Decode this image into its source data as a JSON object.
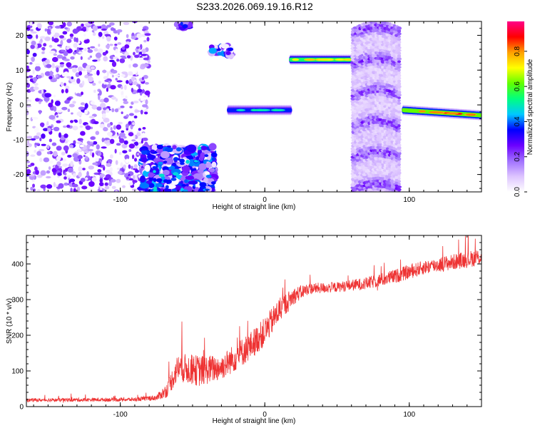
{
  "title": "S233.2026.069.19.16.R12",
  "chart_data": [
    {
      "type": "heatmap",
      "xlabel": "Height of straight line (km)",
      "ylabel": "Frequency (Hz)",
      "xlim": [
        -165,
        150
      ],
      "ylim": [
        -25,
        24
      ],
      "xticks": [
        -100,
        0,
        100
      ],
      "yticks": [
        -20,
        -10,
        0,
        10,
        20
      ],
      "colorbar": {
        "label": "Normalized spectral amplitude",
        "range": [
          0.0,
          0.97
        ],
        "ticks": [
          0.0,
          0.2,
          0.4,
          0.6,
          0.8
        ],
        "colors": [
          "#ffffff",
          "#ddc4ff",
          "#a070ff",
          "#6b00ff",
          "#0000ff",
          "#00c8ff",
          "#00ff80",
          "#60ff00",
          "#ffff00",
          "#ffa000",
          "#ff0000",
          "#ff0088"
        ]
      },
      "features": [
        {
          "kind": "noise",
          "x": [
            -165,
            -80
          ],
          "y": [
            -25,
            24
          ],
          "amplitude": 0.1
        },
        {
          "kind": "cluster",
          "x": [
            -85,
            -35
          ],
          "y": [
            -25,
            -12
          ],
          "amplitude": 0.45
        },
        {
          "kind": "cluster",
          "x": [
            -60,
            -52
          ],
          "y": [
            22,
            24
          ],
          "amplitude": 0.35
        },
        {
          "kind": "cluster",
          "x": [
            -37,
            -23
          ],
          "y": [
            14,
            17
          ],
          "amplitude": 0.45
        },
        {
          "kind": "line",
          "x": [
            -25,
            18
          ],
          "y": [
            -1.5,
            -1.5
          ],
          "amplitude": 0.5
        },
        {
          "kind": "line",
          "x": [
            18,
            62
          ],
          "y": [
            13,
            13
          ],
          "amplitude": 0.75
        },
        {
          "kind": "stripe",
          "x": [
            61,
            94
          ],
          "y": [
            -25,
            24
          ],
          "amplitude": 0.15
        },
        {
          "kind": "line",
          "x": [
            96,
            150
          ],
          "y": [
            -1.5,
            -3
          ],
          "amplitude": 0.85
        }
      ]
    },
    {
      "type": "line",
      "xlabel": "Height of straight line (km)",
      "ylabel": "SNR (10 * v/v)",
      "xlim": [
        -165,
        150
      ],
      "ylim": [
        0,
        480
      ],
      "xticks": [
        -100,
        0,
        100
      ],
      "yticks": [
        0,
        100,
        200,
        300,
        400
      ],
      "color": "#ee3333",
      "trend": {
        "x": [
          -165,
          -90,
          -75,
          -68,
          -60,
          -45,
          -30,
          -20,
          -10,
          0,
          10,
          20,
          30,
          50,
          70,
          90,
          110,
          130,
          150
        ],
        "y": [
          18,
          20,
          25,
          45,
          110,
          100,
          110,
          140,
          170,
          210,
          270,
          310,
          330,
          335,
          345,
          365,
          390,
          405,
          420
        ],
        "noise": [
          6,
          7,
          10,
          25,
          50,
          55,
          45,
          50,
          50,
          50,
          45,
          30,
          20,
          18,
          22,
          25,
          25,
          28,
          30
        ]
      }
    }
  ]
}
